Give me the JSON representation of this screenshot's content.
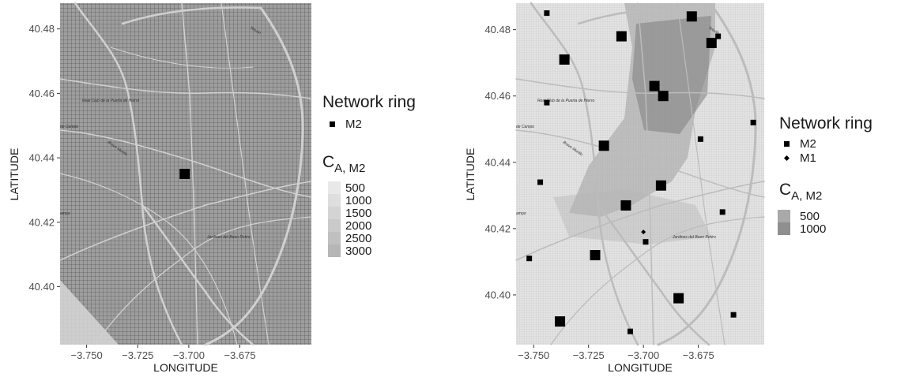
{
  "chart_data": [
    {
      "type": "heatmap",
      "xlabel": "LONGITUDE",
      "ylabel": "LATITUDE",
      "xlim": [
        -3.763,
        -3.64
      ],
      "ylim": [
        40.382,
        40.488
      ],
      "x_ticks": [
        -3.75,
        -3.725,
        -3.7,
        -3.675
      ],
      "x_tick_labels": [
        "−3.750",
        "−3.725",
        "−3.700",
        "−3.675"
      ],
      "y_ticks": [
        40.4,
        40.42,
        40.44,
        40.46,
        40.48
      ],
      "y_tick_labels": [
        "40.40",
        "40.42",
        "40.44",
        "40.46",
        "40.48"
      ],
      "map_labels": [
        "Real Club de la Puerta de Hierro",
        "Jardines del Buen Retiro",
        "Bravo Murillo",
        "Tetuán",
        "de Campo",
        "ampo"
      ],
      "legend": {
        "shape_title": "Network ring",
        "shape_items": [
          {
            "label": "M2",
            "shape": "square"
          }
        ],
        "fill_title_main": "C",
        "fill_title_sub": "A, M2",
        "fill_items": [
          {
            "label": "500",
            "color": "#e8e8e8"
          },
          {
            "label": "1000",
            "color": "#dedede"
          },
          {
            "label": "1500",
            "color": "#d4d4d4"
          },
          {
            "label": "2000",
            "color": "#cacaca"
          },
          {
            "label": "2500",
            "color": "#c0c0c0"
          },
          {
            "label": "3000",
            "color": "#b6b6b6"
          }
        ]
      },
      "points": [
        {
          "x": -3.702,
          "y": 40.435,
          "ring": "M2"
        }
      ]
    },
    {
      "type": "heatmap",
      "xlabel": "LONGITUDE",
      "ylabel": "LATITUDE",
      "xlim": [
        -3.758,
        -3.645
      ],
      "ylim": [
        40.385,
        40.488
      ],
      "x_ticks": [
        -3.75,
        -3.725,
        -3.7,
        -3.675
      ],
      "x_tick_labels": [
        "−3.750",
        "−3.725",
        "−3.700",
        "−3.675"
      ],
      "y_ticks": [
        40.4,
        40.42,
        40.44,
        40.46,
        40.48
      ],
      "y_tick_labels": [
        "40.40",
        "40.42",
        "40.44",
        "40.46",
        "40.48"
      ],
      "map_labels": [
        "Real Club de la Puerta de Hierro",
        "Jardines del Buen Retiro",
        "Bravo Murillo",
        "Tetuán",
        "de Campo",
        "ampo"
      ],
      "legend": {
        "shape_title": "Network ring",
        "shape_items": [
          {
            "label": "M2",
            "shape": "square"
          },
          {
            "label": "M1",
            "shape": "diamond"
          }
        ],
        "fill_title_main": "C",
        "fill_title_sub": "A, M2",
        "fill_items": [
          {
            "label": "500",
            "color": "#a9a9a9"
          },
          {
            "label": "1000",
            "color": "#8f8f8f"
          }
        ]
      },
      "points": [
        {
          "x": -3.744,
          "y": 40.485,
          "ring": "M2",
          "size": "small"
        },
        {
          "x": -3.71,
          "y": 40.478,
          "ring": "M2",
          "size": "large"
        },
        {
          "x": -3.678,
          "y": 40.484,
          "ring": "M2",
          "size": "large"
        },
        {
          "x": -3.666,
          "y": 40.478,
          "ring": "M2",
          "size": "small"
        },
        {
          "x": -3.669,
          "y": 40.476,
          "ring": "M2",
          "size": "large"
        },
        {
          "x": -3.736,
          "y": 40.471,
          "ring": "M2",
          "size": "large"
        },
        {
          "x": -3.695,
          "y": 40.463,
          "ring": "M2",
          "size": "large"
        },
        {
          "x": -3.691,
          "y": 40.46,
          "ring": "M2",
          "size": "large"
        },
        {
          "x": -3.744,
          "y": 40.458,
          "ring": "M2",
          "size": "small"
        },
        {
          "x": -3.65,
          "y": 40.452,
          "ring": "M2",
          "size": "small"
        },
        {
          "x": -3.674,
          "y": 40.447,
          "ring": "M2",
          "size": "small"
        },
        {
          "x": -3.718,
          "y": 40.445,
          "ring": "M2",
          "size": "large"
        },
        {
          "x": -3.747,
          "y": 40.434,
          "ring": "M2",
          "size": "small"
        },
        {
          "x": -3.692,
          "y": 40.433,
          "ring": "M2",
          "size": "large"
        },
        {
          "x": -3.708,
          "y": 40.427,
          "ring": "M2",
          "size": "large"
        },
        {
          "x": -3.664,
          "y": 40.425,
          "ring": "M2",
          "size": "small"
        },
        {
          "x": -3.7,
          "y": 40.419,
          "ring": "M1",
          "size": "small"
        },
        {
          "x": -3.699,
          "y": 40.416,
          "ring": "M2",
          "size": "small"
        },
        {
          "x": -3.722,
          "y": 40.412,
          "ring": "M2",
          "size": "large"
        },
        {
          "x": -3.752,
          "y": 40.411,
          "ring": "M2",
          "size": "small"
        },
        {
          "x": -3.684,
          "y": 40.399,
          "ring": "M2",
          "size": "large"
        },
        {
          "x": -3.659,
          "y": 40.394,
          "ring": "M2",
          "size": "small"
        },
        {
          "x": -3.738,
          "y": 40.392,
          "ring": "M2",
          "size": "large"
        },
        {
          "x": -3.706,
          "y": 40.389,
          "ring": "M2",
          "size": "small"
        }
      ]
    }
  ]
}
